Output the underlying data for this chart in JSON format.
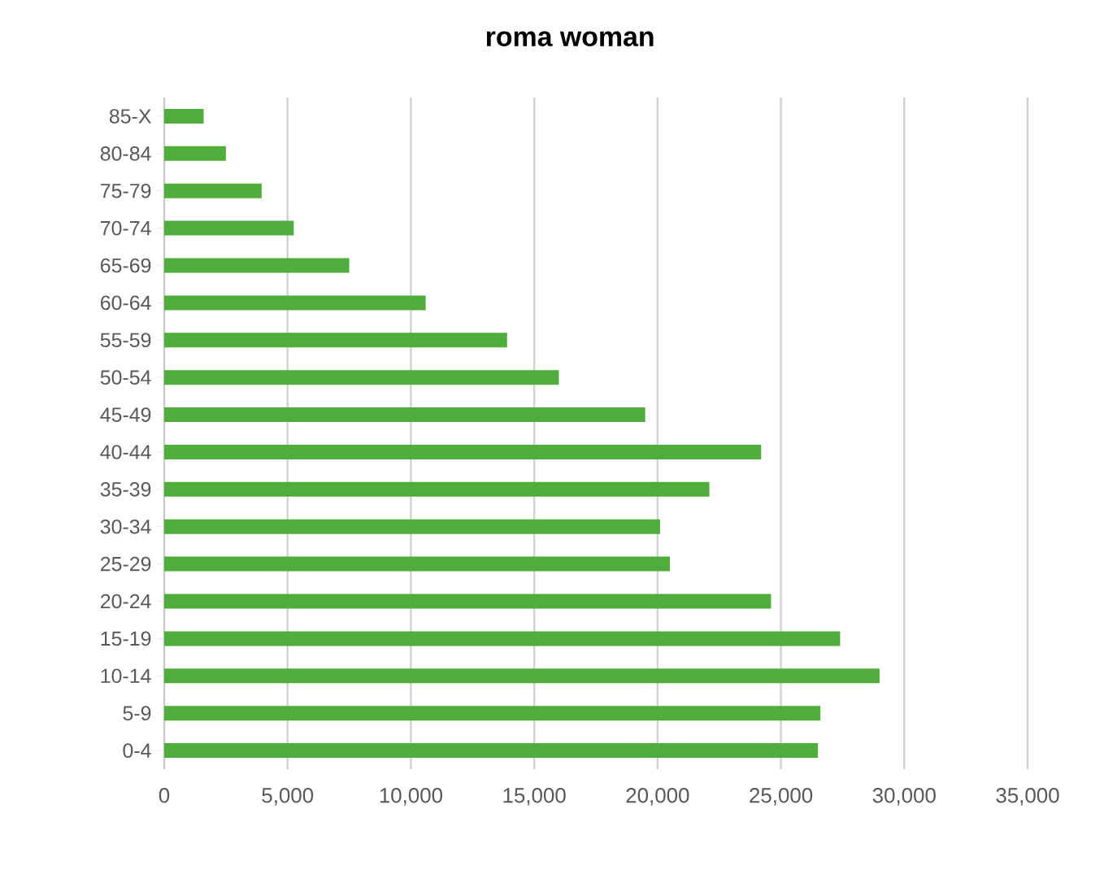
{
  "chart_data": {
    "type": "bar",
    "orientation": "horizontal",
    "title": "roma woman",
    "categories": [
      "85-X",
      "80-84",
      "75-79",
      "70-74",
      "65-69",
      "60-64",
      "55-59",
      "50-54",
      "45-49",
      "40-44",
      "35-39",
      "30-34",
      "25-29",
      "20-24",
      "15-19",
      "10-14",
      "5-9",
      "0-4"
    ],
    "values": [
      1600,
      2500,
      3950,
      5250,
      7500,
      10600,
      13900,
      16000,
      19500,
      24200,
      22100,
      20100,
      20500,
      24600,
      27400,
      29000,
      26600,
      26500
    ],
    "color": "#4fad3b",
    "xlim": [
      0,
      35000
    ],
    "xticks": [
      {
        "value": 0,
        "label": "0"
      },
      {
        "value": 5000,
        "label": "5,000"
      },
      {
        "value": 10000,
        "label": "10,000"
      },
      {
        "value": 15000,
        "label": "15,000"
      },
      {
        "value": 20000,
        "label": "20,000"
      },
      {
        "value": 25000,
        "label": "25,000"
      },
      {
        "value": 30000,
        "label": "30,000"
      },
      {
        "value": 35000,
        "label": "35,000"
      }
    ],
    "grid": "x"
  }
}
